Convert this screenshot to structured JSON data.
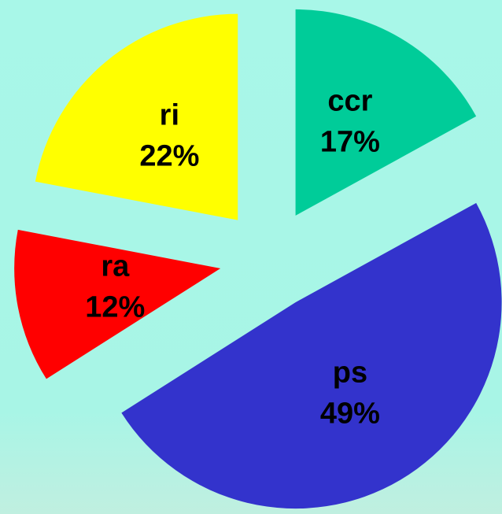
{
  "chart_data": {
    "type": "pie",
    "categories": [
      "ccr",
      "ps",
      "ra",
      "ri"
    ],
    "values": [
      17,
      49,
      12,
      22
    ],
    "value_labels": [
      "17%",
      "49%",
      "12%",
      "22%"
    ],
    "colors": [
      "#00cc99",
      "#3333cc",
      "#ff0000",
      "#ffff00"
    ],
    "exploded": true
  }
}
